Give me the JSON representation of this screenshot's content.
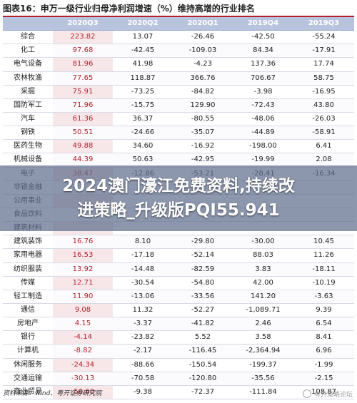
{
  "title": "图表16：申万一级行业归母净利润增速（%）维持高增的行业排名",
  "columns": [
    "",
    "2020Q3",
    "2020Q2",
    "2020Q1",
    "2019Q4",
    "2019Q3"
  ],
  "rows": [
    [
      "综合",
      "223.82",
      "13.07",
      "-26.46",
      "-42.50",
      "-55.24"
    ],
    [
      "化工",
      "97.68",
      "-42.45",
      "-109.03",
      "84.34",
      "-17.91"
    ],
    [
      "电气设备",
      "81.96",
      "41.98",
      "-4.23",
      "137.36",
      "17.74"
    ],
    [
      "农林牧渔",
      "77.65",
      "118.87",
      "366.76",
      "706.67",
      "58.75"
    ],
    [
      "采掘",
      "75.91",
      "-73.25",
      "-84.82",
      "-3.98",
      "-16.95"
    ],
    [
      "国防军工",
      "71.96",
      "-15.75",
      "129.90",
      "-72.43",
      "43.80"
    ],
    [
      "汽车",
      "61.36",
      "36.37",
      "-80.55",
      "-48.06",
      "-26.03"
    ],
    [
      "钢铁",
      "50.51",
      "-24.66",
      "-35.07",
      "-44.89",
      "-58.91"
    ],
    [
      "医药生物",
      "49.88",
      "34.60",
      "-16.92",
      "-198.00",
      "6.41"
    ],
    [
      "机械设备",
      "44.39",
      "50.63",
      "-42.95",
      "-19.99",
      "2.08"
    ],
    [
      "电子",
      "38.47",
      "-12.86",
      "-53.21",
      "-28.41",
      "-16.34"
    ],
    [
      "非银金融",
      "",
      "",
      "",
      "",
      ""
    ],
    [
      "公用事业",
      "",
      "",
      "",
      "",
      ""
    ],
    [
      "食品饮料",
      "",
      "",
      "",
      "",
      ""
    ],
    [
      "建筑材料",
      "",
      "",
      "",
      "",
      ""
    ],
    [
      "建筑装饰",
      "16.76",
      "8.10",
      "-29.80",
      "-30.00",
      "10.45"
    ],
    [
      "家用电器",
      "16.53",
      "-17.18",
      "-52.14",
      "88.03",
      "11.26"
    ],
    [
      "纺织服装",
      "13.92",
      "-14.48",
      "-82.59",
      "3.83",
      "-18.11"
    ],
    [
      "传媒",
      "12.71",
      "-30.54",
      "-54.80",
      "42.00",
      "-10.19"
    ],
    [
      "轻工制造",
      "11.90",
      "-13.06",
      "-33.56",
      "141.20",
      "-3.63"
    ],
    [
      "通信",
      "9.08",
      "11.32",
      "-52.27",
      "-1,089.71",
      "9.39"
    ],
    [
      "房地产",
      "4.15",
      "-3.37",
      "-41.82",
      "2.46",
      "6.54"
    ],
    [
      "银行",
      "-4.14",
      "-23.82",
      "5.52",
      "3.58",
      "8.41"
    ],
    [
      "计算机",
      "-8.82",
      "-2.17",
      "-116.45",
      "-2,364.94",
      "6.96"
    ],
    [
      "休闲服务",
      "-24.34",
      "-88.66",
      "-150.54",
      "-199.37",
      "-1.99"
    ],
    [
      "交通运输",
      "-30.13",
      "-70.58",
      "-120.80",
      "-35.56",
      "-2.15"
    ],
    [
      "商业贸易",
      "-50.60",
      "-9.38",
      "-72.37",
      "-111.84",
      "108.87"
    ]
  ],
  "source": "资料来源：wind、粤开证券研究院",
  "overlay": {
    "line1": "2024澳门濠江免费资料,持续改",
    "line2": "进策略_升级版PQI55.941"
  },
  "watermark": "粤开策略论坛",
  "colors": {
    "header_bg": "#b8c3de",
    "accent": "#b5202a",
    "highlight_bg": "#f7e7e9"
  }
}
